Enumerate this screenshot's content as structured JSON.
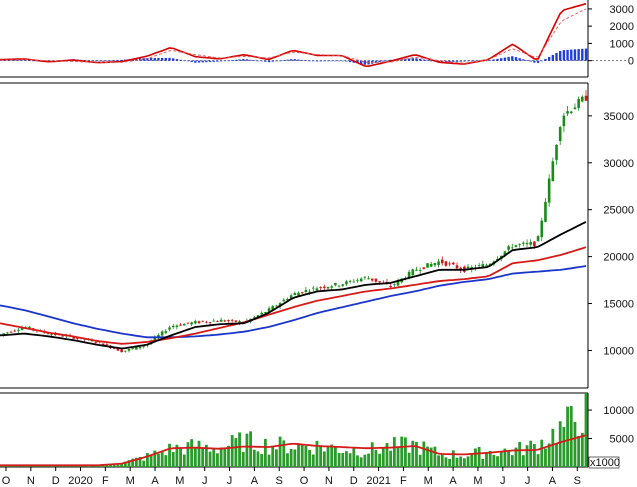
{
  "chart_data": [
    {
      "panel": "macd",
      "type": "line",
      "ylim": [
        -600,
        3400
      ],
      "y_ticks": [
        "3000",
        "2000",
        "1000",
        "0"
      ],
      "x": [
        "2019-10",
        "2019-11",
        "2019-12",
        "2020-01",
        "2020-02",
        "2020-03",
        "2020-04",
        "2020-05",
        "2020-06",
        "2020-07",
        "2020-08",
        "2020-09",
        "2020-10",
        "2020-11",
        "2020-12",
        "2021-01",
        "2021-02",
        "2021-03",
        "2021-04",
        "2021-05",
        "2021-06",
        "2021-07",
        "2021-08",
        "2021-08b",
        "2021-09"
      ],
      "series": [
        {
          "color": "#d40000",
          "values": [
            60,
            100,
            -70,
            40,
            -120,
            -50,
            250,
            760,
            230,
            100,
            350,
            60,
            600,
            300,
            300,
            -350,
            -30,
            350,
            -100,
            -200,
            60,
            960,
            -10,
            2900,
            3300
          ]
        },
        {
          "color": "#e06060",
          "values": [
            20,
            60,
            -10,
            -50,
            -80,
            -100,
            100,
            600,
            350,
            150,
            250,
            150,
            500,
            350,
            300,
            -100,
            -80,
            200,
            0,
            -150,
            50,
            700,
            150,
            2300,
            3000
          ]
        },
        {
          "color": "#1f3fd8",
          "values": [
            40,
            40,
            -60,
            90,
            -40,
            50,
            150,
            160,
            -120,
            -50,
            100,
            -90,
            100,
            -50,
            0,
            -250,
            50,
            150,
            -100,
            -50,
            10,
            260,
            -160,
            600,
            700
          ]
        }
      ]
    },
    {
      "panel": "price",
      "type": "line",
      "ylim": [
        6000,
        38500
      ],
      "y_ticks": [
        "35000",
        "30000",
        "25000",
        "20000",
        "15000",
        "10000"
      ],
      "x_ticks": [
        "O",
        "N",
        "D",
        "2020",
        "F",
        "M",
        "A",
        "M",
        "J",
        "J",
        "A",
        "S",
        "O",
        "N",
        "D",
        "2021",
        "F",
        "M",
        "A",
        "M",
        "J",
        "J",
        "A",
        "S"
      ],
      "candles_close": [
        11700,
        12500,
        11800,
        11400,
        10900,
        9900,
        10600,
        12600,
        13000,
        13200,
        13000,
        14300,
        16000,
        16700,
        17100,
        17800,
        16800,
        18600,
        19500,
        18600,
        19200,
        21200,
        21400,
        35000,
        37000
      ],
      "series": [
        {
          "name": "",
          "color": "#1a35c8",
          "values": [
            14800,
            14300,
            13600,
            12900,
            12300,
            11800,
            11400,
            11400,
            11500,
            11700,
            12000,
            12500,
            13200,
            14000,
            14600,
            15200,
            15800,
            16300,
            16900,
            17300,
            17600,
            18200,
            18400,
            18600,
            19000
          ]
        },
        {
          "name": "",
          "color": "#d51a1a",
          "values": [
            12900,
            12400,
            11900,
            11500,
            11000,
            10700,
            10900,
            11300,
            11800,
            12400,
            13000,
            13800,
            14600,
            15300,
            15800,
            16300,
            16600,
            17000,
            17400,
            17600,
            17900,
            19300,
            19600,
            20200,
            21000
          ]
        },
        {
          "name": "",
          "color": "#000000",
          "values": [
            11600,
            11800,
            11500,
            11100,
            10600,
            10200,
            10600,
            11600,
            12500,
            12800,
            12900,
            14000,
            15600,
            16300,
            16500,
            17000,
            17200,
            17900,
            18600,
            18600,
            18900,
            20700,
            21000,
            22400,
            23700
          ]
        }
      ]
    },
    {
      "panel": "volume",
      "type": "bar",
      "ylim": [
        0,
        13000
      ],
      "y_ticks": [
        "10000",
        "5000"
      ],
      "unit_label": "x1000",
      "volume": [
        300,
        280,
        250,
        220,
        260,
        700,
        1800,
        3200,
        3600,
        3400,
        4600,
        3800,
        3800,
        3700,
        3200,
        2900,
        3600,
        3900,
        2300,
        2100,
        2700,
        2900,
        3800,
        6800,
        9800
      ],
      "ma_color": "#d51a1a",
      "ma": [
        300,
        300,
        300,
        300,
        300,
        600,
        1800,
        3300,
        3400,
        3200,
        3600,
        3500,
        4100,
        3700,
        3500,
        3300,
        3400,
        3700,
        2300,
        2200,
        2500,
        2900,
        3000,
        4400,
        5600
      ]
    }
  ]
}
